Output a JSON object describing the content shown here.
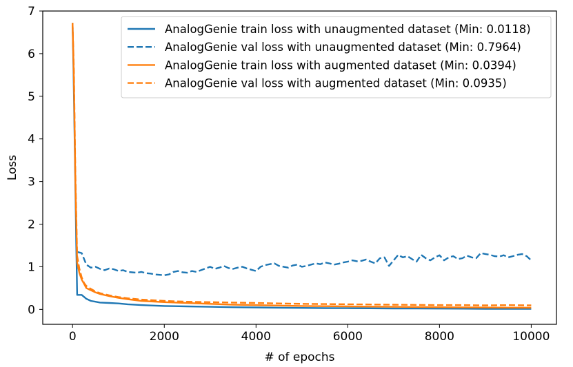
{
  "chart_data": {
    "type": "line",
    "title": "",
    "xlabel": "# of epochs",
    "ylabel": "Loss",
    "xlim": [
      -650,
      10550
    ],
    "ylim": [
      -0.35,
      7.0
    ],
    "xticks": [
      0,
      2000,
      4000,
      6000,
      8000,
      10000
    ],
    "yticks": [
      0,
      1,
      2,
      3,
      4,
      5,
      6,
      7
    ],
    "xtick_labels": [
      "0",
      "2000",
      "4000",
      "6000",
      "8000",
      "10000"
    ],
    "ytick_labels": [
      "0",
      "1",
      "2",
      "3",
      "4",
      "5",
      "6",
      "7"
    ],
    "grid": false,
    "legend_position": "top-right",
    "series": [
      {
        "name": "AnalogGenie train loss with unaugmented dataset (Min: 0.0118)",
        "color": "#1f77b4",
        "style": "solid",
        "x": [
          0,
          20,
          50,
          80,
          100,
          200,
          300,
          400,
          500,
          600,
          800,
          1000,
          1200,
          1500,
          2000,
          2500,
          3000,
          3500,
          4000,
          4500,
          5000,
          5500,
          6000,
          6500,
          7000,
          7500,
          8000,
          8500,
          9000,
          9500,
          10000
        ],
        "y": [
          6.72,
          5.6,
          3.6,
          1.5,
          0.34,
          0.34,
          0.25,
          0.2,
          0.18,
          0.16,
          0.15,
          0.14,
          0.12,
          0.1,
          0.08,
          0.07,
          0.06,
          0.05,
          0.045,
          0.04,
          0.035,
          0.03,
          0.028,
          0.025,
          0.022,
          0.02,
          0.018,
          0.016,
          0.014,
          0.013,
          0.0118
        ]
      },
      {
        "name": "AnalogGenie val loss with unaugmented dataset (Min: 0.7964)",
        "color": "#1f77b4",
        "style": "dashed",
        "x": [
          100,
          200,
          300,
          400,
          500,
          600,
          700,
          800,
          900,
          1000,
          1100,
          1200,
          1300,
          1400,
          1500,
          1600,
          1700,
          1800,
          1900,
          2000,
          2100,
          2200,
          2300,
          2400,
          2500,
          2600,
          2700,
          2800,
          2900,
          3000,
          3100,
          3200,
          3300,
          3400,
          3500,
          3600,
          3700,
          3800,
          3900,
          4000,
          4100,
          4200,
          4300,
          4400,
          4500,
          4600,
          4700,
          4800,
          4900,
          5000,
          5100,
          5200,
          5300,
          5400,
          5500,
          5600,
          5700,
          5800,
          5900,
          6000,
          6100,
          6200,
          6300,
          6400,
          6500,
          6600,
          6700,
          6800,
          6900,
          7000,
          7100,
          7200,
          7300,
          7400,
          7500,
          7600,
          7700,
          7800,
          7900,
          8000,
          8100,
          8200,
          8300,
          8400,
          8500,
          8600,
          8700,
          8800,
          8900,
          9000,
          9100,
          9200,
          9300,
          9400,
          9500,
          9600,
          9700,
          9800,
          9900,
          10000
        ],
        "y": [
          1.35,
          1.32,
          1.05,
          0.98,
          1.0,
          0.95,
          0.92,
          0.96,
          0.94,
          0.9,
          0.92,
          0.88,
          0.87,
          0.86,
          0.88,
          0.85,
          0.84,
          0.82,
          0.81,
          0.8,
          0.82,
          0.88,
          0.9,
          0.87,
          0.86,
          0.9,
          0.88,
          0.92,
          0.96,
          1.0,
          0.95,
          0.98,
          1.02,
          0.97,
          0.95,
          0.98,
          1.0,
          0.96,
          0.93,
          0.9,
          1.0,
          1.04,
          1.06,
          1.08,
          1.02,
          1.0,
          0.98,
          1.03,
          1.05,
          1.0,
          1.02,
          1.05,
          1.08,
          1.06,
          1.1,
          1.08,
          1.05,
          1.07,
          1.1,
          1.12,
          1.15,
          1.13,
          1.14,
          1.17,
          1.12,
          1.08,
          1.2,
          1.22,
          1.02,
          1.15,
          1.28,
          1.22,
          1.25,
          1.18,
          1.12,
          1.28,
          1.2,
          1.15,
          1.22,
          1.27,
          1.15,
          1.22,
          1.25,
          1.18,
          1.2,
          1.26,
          1.22,
          1.2,
          1.32,
          1.3,
          1.28,
          1.25,
          1.24,
          1.27,
          1.22,
          1.25,
          1.28,
          1.3,
          1.25,
          1.15
        ]
      },
      {
        "name": "AnalogGenie train loss with augmented dataset (Min: 0.0394)",
        "color": "#ff7f0e",
        "style": "solid",
        "x": [
          0,
          30,
          60,
          100,
          150,
          200,
          250,
          300,
          400,
          500,
          600,
          800,
          1000,
          1200,
          1500,
          2000,
          2500,
          3000,
          3500,
          4000,
          4500,
          5000,
          5500,
          6000,
          6500,
          7000,
          7500,
          8000,
          8500,
          9000,
          9500,
          10000
        ],
        "y": [
          6.72,
          5.4,
          3.1,
          1.1,
          0.85,
          0.7,
          0.6,
          0.5,
          0.45,
          0.4,
          0.36,
          0.31,
          0.27,
          0.24,
          0.2,
          0.17,
          0.15,
          0.13,
          0.11,
          0.1,
          0.09,
          0.08,
          0.075,
          0.07,
          0.065,
          0.06,
          0.055,
          0.05,
          0.047,
          0.044,
          0.041,
          0.0394
        ]
      },
      {
        "name": "AnalogGenie val loss with augmented dataset (Min: 0.0935)",
        "color": "#ff7f0e",
        "style": "dashed",
        "x": [
          0,
          30,
          60,
          100,
          150,
          200,
          250,
          300,
          400,
          500,
          600,
          800,
          1000,
          1200,
          1500,
          2000,
          2500,
          3000,
          3500,
          4000,
          4500,
          5000,
          5500,
          6000,
          6500,
          7000,
          7500,
          8000,
          8500,
          9000,
          9500,
          10000
        ],
        "y": [
          6.72,
          5.6,
          3.3,
          1.25,
          0.95,
          0.75,
          0.62,
          0.55,
          0.48,
          0.42,
          0.38,
          0.33,
          0.29,
          0.26,
          0.23,
          0.2,
          0.18,
          0.17,
          0.16,
          0.15,
          0.14,
          0.13,
          0.125,
          0.12,
          0.115,
          0.11,
          0.105,
          0.1,
          0.1,
          0.095,
          0.1,
          0.0935
        ]
      }
    ]
  }
}
